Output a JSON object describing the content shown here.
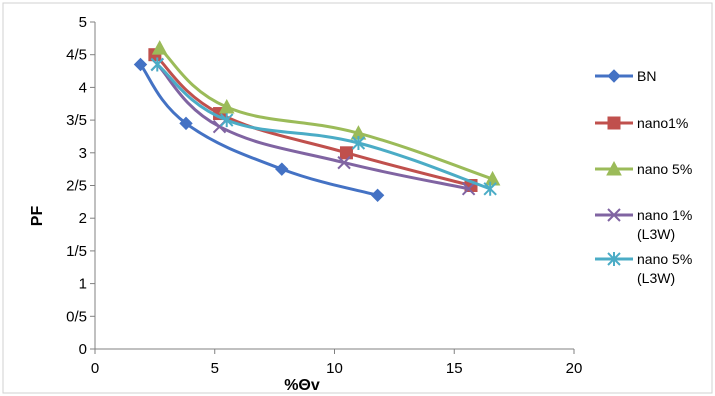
{
  "chart_data": {
    "type": "line",
    "title": "",
    "xlabel": "%Θv",
    "ylabel": "PF",
    "xlim": [
      0,
      20
    ],
    "ylim": [
      0,
      5
    ],
    "x_ticks": [
      "0",
      "5",
      "10",
      "15",
      "20"
    ],
    "y_ticks": [
      "0",
      "0/5",
      "1",
      "1/5",
      "2",
      "2/5",
      "3",
      "3/5",
      "4",
      "4/5",
      "5"
    ],
    "grid": false,
    "legend_position": "right",
    "series": [
      {
        "name": "BN",
        "legend_lines": [
          "BN"
        ],
        "color": "#4472C4",
        "marker": "diamond",
        "x": [
          1.9,
          3.8,
          7.8,
          11.8
        ],
        "y": [
          4.35,
          3.45,
          2.75,
          2.35
        ]
      },
      {
        "name": "nano1%",
        "legend_lines": [
          "nano1%"
        ],
        "color": "#C0504D",
        "marker": "square",
        "x": [
          2.5,
          5.2,
          10.5,
          15.7
        ],
        "y": [
          4.5,
          3.6,
          3.0,
          2.5
        ]
      },
      {
        "name": "nano 5%",
        "legend_lines": [
          "nano 5%"
        ],
        "color": "#9BBB59",
        "marker": "triangle",
        "x": [
          2.7,
          5.5,
          11.0,
          16.6
        ],
        "y": [
          4.6,
          3.7,
          3.3,
          2.6
        ]
      },
      {
        "name": "nano 1% (L3W)",
        "legend_lines": [
          "nano 1%",
          "(L3W)"
        ],
        "color": "#8064A2",
        "marker": "x",
        "x": [
          2.6,
          5.2,
          10.4,
          15.6
        ],
        "y": [
          4.35,
          3.4,
          2.85,
          2.45
        ]
      },
      {
        "name": "nano 5% (L3W)",
        "legend_lines": [
          "nano 5%",
          "(L3W)"
        ],
        "color": "#4BACC6",
        "marker": "star",
        "x": [
          2.6,
          5.5,
          11.0,
          16.5
        ],
        "y": [
          4.35,
          3.5,
          3.15,
          2.45
        ]
      }
    ]
  }
}
